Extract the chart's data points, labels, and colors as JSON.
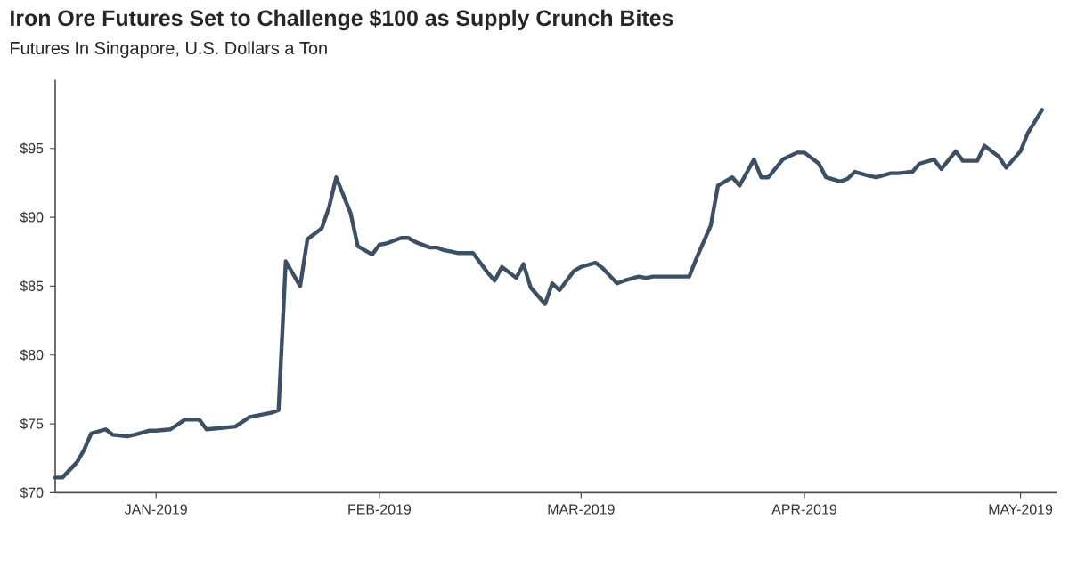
{
  "chart_data": {
    "type": "line",
    "title": "Iron Ore Futures Set to Challenge $100 as Supply Crunch Bites",
    "subtitle": "Futures In Singapore, U.S. Dollars a Ton",
    "x": [
      "2018-12-18",
      "2018-12-19",
      "2018-12-21",
      "2018-12-22",
      "2018-12-23",
      "2018-12-25",
      "2018-12-26",
      "2018-12-28",
      "2018-12-29",
      "2018-12-31",
      "2019-01-01",
      "2019-01-03",
      "2019-01-05",
      "2019-01-07",
      "2019-01-08",
      "2019-01-10",
      "2019-01-12",
      "2019-01-14",
      "2019-01-17",
      "2019-01-18",
      "2019-01-19",
      "2019-01-21",
      "2019-01-22",
      "2019-01-24",
      "2019-01-25",
      "2019-01-26",
      "2019-01-28",
      "2019-01-29",
      "2019-01-31",
      "2019-02-01",
      "2019-02-02",
      "2019-02-04",
      "2019-02-05",
      "2019-02-06",
      "2019-02-08",
      "2019-02-09",
      "2019-02-10",
      "2019-02-12",
      "2019-02-14",
      "2019-02-16",
      "2019-02-17",
      "2019-02-18",
      "2019-02-20",
      "2019-02-21",
      "2019-02-22",
      "2019-02-24",
      "2019-02-25",
      "2019-02-26",
      "2019-02-28",
      "2019-03-01",
      "2019-03-03",
      "2019-03-04",
      "2019-03-06",
      "2019-03-07",
      "2019-03-09",
      "2019-03-10",
      "2019-03-11",
      "2019-03-14",
      "2019-03-16",
      "2019-03-17",
      "2019-03-19",
      "2019-03-20",
      "2019-03-22",
      "2019-03-23",
      "2019-03-25",
      "2019-03-26",
      "2019-03-27",
      "2019-03-29",
      "2019-03-31",
      "2019-04-01",
      "2019-04-03",
      "2019-04-04",
      "2019-04-06",
      "2019-04-07",
      "2019-04-08",
      "2019-04-10",
      "2019-04-11",
      "2019-04-13",
      "2019-04-14",
      "2019-04-16",
      "2019-04-17",
      "2019-04-19",
      "2019-04-20",
      "2019-04-22",
      "2019-04-23",
      "2019-04-25",
      "2019-04-26",
      "2019-04-28",
      "2019-04-29",
      "2019-05-01",
      "2019-05-02",
      "2019-05-04"
    ],
    "series": [
      {
        "color": "#3d4f63",
        "values": [
          71.1,
          71.1,
          72.2,
          73.1,
          74.3,
          74.6,
          74.2,
          74.1,
          74.2,
          74.5,
          74.5,
          74.6,
          75.3,
          75.3,
          74.6,
          74.7,
          74.8,
          75.5,
          75.8,
          76.0,
          86.8,
          85.0,
          88.4,
          89.2,
          90.7,
          92.9,
          90.3,
          87.9,
          87.3,
          88.0,
          88.1,
          88.5,
          88.5,
          88.2,
          87.8,
          87.8,
          87.6,
          87.4,
          87.4,
          86.0,
          85.4,
          86.4,
          85.6,
          86.6,
          84.9,
          83.7,
          85.2,
          84.7,
          86.1,
          86.4,
          86.7,
          86.3,
          85.2,
          85.4,
          85.7,
          85.6,
          85.7,
          85.7,
          85.7,
          87.0,
          89.4,
          92.3,
          92.9,
          92.3,
          94.2,
          92.9,
          92.9,
          94.2,
          94.7,
          94.7,
          93.9,
          92.9,
          92.6,
          92.8,
          93.3,
          93.0,
          92.9,
          93.2,
          93.2,
          93.3,
          93.9,
          94.2,
          93.5,
          94.8,
          94.1,
          94.1,
          95.2,
          94.4,
          93.6,
          94.8,
          96.1,
          97.8
        ]
      }
    ],
    "xlim": [
      "2018-12-18",
      "2019-05-06"
    ],
    "xticks": [
      {
        "value": "2019-01-01",
        "label": "JAN-2019"
      },
      {
        "value": "2019-02-01",
        "label": "FEB-2019"
      },
      {
        "value": "2019-03-01",
        "label": "MAR-2019"
      },
      {
        "value": "2019-04-01",
        "label": "APR-2019"
      },
      {
        "value": "2019-05-01",
        "label": "MAY-2019"
      }
    ],
    "ylim": [
      70,
      100
    ],
    "yticks": [
      {
        "value": 70,
        "label": "$70"
      },
      {
        "value": 75,
        "label": "$75"
      },
      {
        "value": 80,
        "label": "$80"
      },
      {
        "value": 85,
        "label": "$85"
      },
      {
        "value": 90,
        "label": "$90"
      },
      {
        "value": 95,
        "label": "$95"
      }
    ],
    "grid": false,
    "marker": "none",
    "line_style": "solid"
  }
}
